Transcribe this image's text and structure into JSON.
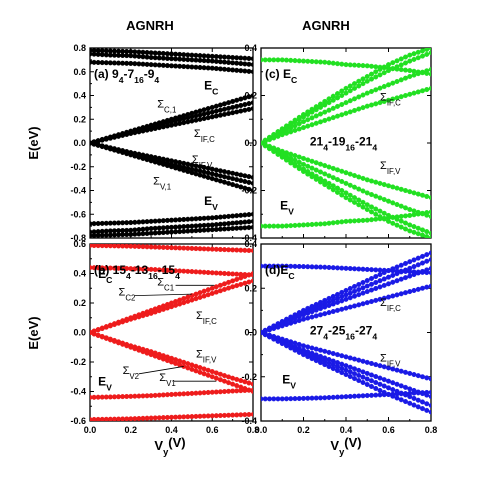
{
  "colors": {
    "panel_a": "#000000",
    "panel_b": "#ee1c1c",
    "panel_c": "#22e022",
    "panel_d": "#1a1ae6",
    "axis": "#000000"
  },
  "figure": {
    "column_headers": [
      "AGNRH",
      "AGNRH"
    ],
    "ylabel_main": "E(eV)",
    "ylabel_sub": "",
    "xlabel_main": "V",
    "xlabel_sub": "y",
    "xlabel_tail": "(V)"
  },
  "chart_data": [
    {
      "id": "a",
      "type": "line",
      "label": {
        "main": "(a) ",
        "parts": [
          [
            "9",
            "4"
          ],
          [
            "-7",
            "16"
          ],
          [
            "-9",
            "4"
          ]
        ]
      },
      "xlim": [
        0,
        0.8
      ],
      "ylim": [
        -0.8,
        0.8
      ],
      "x_ticks": [
        "",
        "",
        "",
        "",
        ""
      ],
      "y_ticks": [
        "-0.8",
        "-0.6",
        "-0.4",
        "-0.2",
        "0.0",
        "0.2",
        "0.4",
        "0.6",
        "0.8"
      ],
      "x": [
        0.0,
        0.1,
        0.2,
        0.3,
        0.4,
        0.5,
        0.6,
        0.7,
        0.8
      ],
      "series": [
        {
          "values": [
            0.78,
            0.775,
            0.77,
            0.76,
            0.75,
            0.74,
            0.73,
            0.72,
            0.71
          ]
        },
        {
          "values": [
            0.75,
            0.74,
            0.735,
            0.72,
            0.71,
            0.7,
            0.69,
            0.675,
            0.66
          ]
        },
        {
          "values": [
            0.68,
            0.675,
            0.67,
            0.66,
            0.65,
            0.64,
            0.63,
            0.615,
            0.6
          ]
        },
        {
          "values": [
            0.0,
            0.05,
            0.1,
            0.15,
            0.2,
            0.25,
            0.3,
            0.35,
            0.4
          ]
        },
        {
          "values": [
            0.0,
            0.045,
            0.09,
            0.135,
            0.18,
            0.22,
            0.26,
            0.3,
            0.34
          ]
        },
        {
          "values": [
            0.0,
            0.04,
            0.08,
            0.115,
            0.15,
            0.185,
            0.22,
            0.255,
            0.29
          ]
        },
        {
          "values": [
            0.0,
            -0.04,
            -0.08,
            -0.115,
            -0.15,
            -0.185,
            -0.22,
            -0.255,
            -0.29
          ]
        },
        {
          "values": [
            0.0,
            -0.045,
            -0.09,
            -0.135,
            -0.18,
            -0.22,
            -0.26,
            -0.3,
            -0.34
          ]
        },
        {
          "values": [
            0.0,
            -0.05,
            -0.1,
            -0.15,
            -0.2,
            -0.25,
            -0.3,
            -0.35,
            -0.4
          ]
        },
        {
          "values": [
            -0.68,
            -0.675,
            -0.67,
            -0.66,
            -0.65,
            -0.64,
            -0.63,
            -0.615,
            -0.6
          ]
        },
        {
          "values": [
            -0.75,
            -0.74,
            -0.735,
            -0.72,
            -0.71,
            -0.7,
            -0.69,
            -0.675,
            -0.66
          ]
        },
        {
          "values": [
            -0.78,
            -0.775,
            -0.77,
            -0.76,
            -0.75,
            -0.74,
            -0.73,
            -0.72,
            -0.71
          ]
        }
      ],
      "annotations": [
        {
          "main": "E",
          "sub": "C",
          "x": 0.56,
          "y": 0.45
        },
        {
          "main": "Σ",
          "sub": "C,1",
          "x": 0.33,
          "y": 0.3
        },
        {
          "main": "Σ",
          "sub": "IF,C",
          "x": 0.51,
          "y": 0.05
        },
        {
          "main": "Σ",
          "sub": "IF,V",
          "x": 0.5,
          "y": -0.17
        },
        {
          "main": "Σ",
          "sub": "V,1",
          "x": 0.31,
          "y": -0.35
        },
        {
          "main": "E",
          "sub": "V",
          "x": 0.56,
          "y": -0.52
        }
      ]
    },
    {
      "id": "c",
      "type": "line",
      "label": {
        "main": "(c) ",
        "parts": [
          [
            "E",
            "C"
          ]
        ]
      },
      "center_label": {
        "parts": [
          [
            "21",
            "4"
          ],
          [
            "-19",
            "16"
          ],
          [
            "-21",
            "4"
          ]
        ],
        "x": 0.23,
        "y": -0.01
      },
      "xlim": [
        0,
        0.8
      ],
      "ylim": [
        -0.4,
        0.4
      ],
      "x_ticks": [
        "",
        "",
        "",
        "",
        ""
      ],
      "y_ticks": [
        "-0.4",
        "-0.2",
        "0.0",
        "0.2",
        "0.4"
      ],
      "x": [
        0.0,
        0.1,
        0.2,
        0.3,
        0.4,
        0.5,
        0.6,
        0.7,
        0.8
      ],
      "series": [
        {
          "values": [
            0.35,
            0.35,
            0.345,
            0.34,
            0.33,
            0.325,
            0.315,
            0.305,
            0.29
          ]
        },
        {
          "values": [
            0.0,
            0.06,
            0.12,
            0.175,
            0.23,
            0.28,
            0.33,
            0.37,
            0.4
          ]
        },
        {
          "values": [
            0.0,
            0.055,
            0.11,
            0.16,
            0.21,
            0.26,
            0.305,
            0.345,
            0.38
          ]
        },
        {
          "values": [
            0.0,
            0.045,
            0.09,
            0.13,
            0.17,
            0.21,
            0.245,
            0.28,
            0.31
          ]
        },
        {
          "values": [
            0.0,
            0.035,
            0.065,
            0.095,
            0.125,
            0.155,
            0.18,
            0.205,
            0.23
          ]
        },
        {
          "values": [
            0.0,
            -0.035,
            -0.065,
            -0.095,
            -0.125,
            -0.155,
            -0.18,
            -0.205,
            -0.23
          ]
        },
        {
          "values": [
            0.0,
            -0.045,
            -0.09,
            -0.13,
            -0.17,
            -0.21,
            -0.245,
            -0.28,
            -0.31
          ]
        },
        {
          "values": [
            0.0,
            -0.055,
            -0.11,
            -0.16,
            -0.21,
            -0.26,
            -0.305,
            -0.345,
            -0.38
          ]
        },
        {
          "values": [
            0.0,
            -0.06,
            -0.12,
            -0.175,
            -0.23,
            -0.28,
            -0.33,
            -0.37,
            -0.4
          ]
        },
        {
          "values": [
            -0.35,
            -0.35,
            -0.345,
            -0.34,
            -0.33,
            -0.325,
            -0.315,
            -0.305,
            -0.29
          ]
        }
      ],
      "annotations": [
        {
          "main": "Σ",
          "sub": "IF,C",
          "x": 0.56,
          "y": 0.18
        },
        {
          "main": "Σ",
          "sub": "IF,V",
          "x": 0.56,
          "y": -0.11
        },
        {
          "main": "E",
          "sub": "V",
          "x": 0.09,
          "y": -0.28
        }
      ]
    },
    {
      "id": "b",
      "type": "line",
      "label": {
        "main": "(b) ",
        "parts": [
          [
            "15",
            "4"
          ],
          [
            "-13",
            "16"
          ],
          [
            "-15",
            "4"
          ]
        ]
      },
      "xlim": [
        0,
        0.8
      ],
      "ylim": [
        -0.6,
        0.6
      ],
      "x_ticks": [
        "0.0",
        "0.2",
        "0.4",
        "0.6",
        "0.8"
      ],
      "y_ticks": [
        "-0.6",
        "-0.4",
        "-0.2",
        "0.0",
        "0.2",
        "0.4",
        "0.6"
      ],
      "x": [
        0.0,
        0.1,
        0.2,
        0.3,
        0.4,
        0.5,
        0.6,
        0.7,
        0.8
      ],
      "series": [
        {
          "values": [
            0.59,
            0.588,
            0.585,
            0.58,
            0.575,
            0.57,
            0.565,
            0.56,
            0.555
          ]
        },
        {
          "values": [
            0.44,
            0.437,
            0.433,
            0.428,
            0.42,
            0.413,
            0.405,
            0.397,
            0.39
          ]
        },
        {
          "values": [
            0.0,
            0.05,
            0.1,
            0.15,
            0.2,
            0.25,
            0.3,
            0.35,
            0.4
          ]
        },
        {
          "values": [
            0.0,
            0.045,
            0.09,
            0.13,
            0.175,
            0.22,
            0.265,
            0.31,
            0.35
          ]
        },
        {
          "values": [
            0.0,
            -0.045,
            -0.09,
            -0.13,
            -0.175,
            -0.22,
            -0.265,
            -0.31,
            -0.35
          ]
        },
        {
          "values": [
            0.0,
            -0.05,
            -0.1,
            -0.15,
            -0.2,
            -0.25,
            -0.3,
            -0.35,
            -0.4
          ]
        },
        {
          "values": [
            -0.44,
            -0.437,
            -0.433,
            -0.428,
            -0.42,
            -0.413,
            -0.405,
            -0.397,
            -0.39
          ]
        },
        {
          "values": [
            -0.59,
            -0.588,
            -0.585,
            -0.58,
            -0.575,
            -0.57,
            -0.565,
            -0.56,
            -0.555
          ]
        }
      ],
      "annotations": [
        {
          "main": "E",
          "sub": "C",
          "x": 0.04,
          "y": 0.37
        },
        {
          "main": "Σ",
          "sub": "C2",
          "x": 0.14,
          "y": 0.25
        },
        {
          "main": "Σ",
          "sub": "C1",
          "x": 0.33,
          "y": 0.32
        },
        {
          "main": "Σ",
          "sub": "IF,C",
          "x": 0.52,
          "y": 0.09
        },
        {
          "main": "Σ",
          "sub": "IF,V",
          "x": 0.52,
          "y": -0.17
        },
        {
          "main": "Σ",
          "sub": "V2",
          "x": 0.16,
          "y": -0.28
        },
        {
          "main": "Σ",
          "sub": "V1",
          "x": 0.34,
          "y": -0.33
        },
        {
          "main": "E",
          "sub": "V",
          "x": 0.04,
          "y": -0.36
        }
      ],
      "leaders": [
        {
          "x1": 0.22,
          "y1": 0.25,
          "x2": 0.5,
          "y2": 0.26
        },
        {
          "x1": 0.42,
          "y1": 0.32,
          "x2": 0.61,
          "y2": 0.32
        },
        {
          "x1": 0.24,
          "y1": -0.28,
          "x2": 0.46,
          "y2": -0.23
        },
        {
          "x1": 0.41,
          "y1": -0.33,
          "x2": 0.62,
          "y2": -0.33
        }
      ]
    },
    {
      "id": "d",
      "type": "line",
      "label": {
        "main": "(d)",
        "parts": [
          [
            "E",
            "C"
          ]
        ]
      },
      "center_label": {
        "parts": [
          [
            "27",
            "4"
          ],
          [
            "-25",
            "16"
          ],
          [
            "-27",
            "4"
          ]
        ],
        "x": 0.23,
        "y": -0.01
      },
      "xlim": [
        0,
        0.8
      ],
      "ylim": [
        -0.4,
        0.4
      ],
      "x_ticks": [
        "0.0",
        "0.2",
        "0.4",
        "0.6",
        "0.8"
      ],
      "y_ticks": [
        "-0.4",
        "-0.2",
        "0.0",
        "0.2",
        "0.4"
      ],
      "x": [
        0.0,
        0.1,
        0.2,
        0.3,
        0.4,
        0.5,
        0.6,
        0.7,
        0.8
      ],
      "series": [
        {
          "values": [
            0.3,
            0.3,
            0.298,
            0.295,
            0.29,
            0.285,
            0.28,
            0.275,
            0.27
          ]
        },
        {
          "values": [
            0.0,
            0.05,
            0.1,
            0.145,
            0.19,
            0.235,
            0.28,
            0.32,
            0.36
          ]
        },
        {
          "values": [
            0.0,
            0.045,
            0.09,
            0.13,
            0.17,
            0.21,
            0.25,
            0.29,
            0.33
          ]
        },
        {
          "values": [
            0.0,
            0.04,
            0.08,
            0.115,
            0.15,
            0.185,
            0.22,
            0.255,
            0.29
          ]
        },
        {
          "values": [
            0.0,
            0.03,
            0.06,
            0.085,
            0.11,
            0.135,
            0.16,
            0.185,
            0.21
          ]
        },
        {
          "values": [
            0.0,
            -0.03,
            -0.06,
            -0.085,
            -0.11,
            -0.135,
            -0.16,
            -0.185,
            -0.21
          ]
        },
        {
          "values": [
            0.0,
            -0.04,
            -0.08,
            -0.115,
            -0.15,
            -0.185,
            -0.22,
            -0.255,
            -0.29
          ]
        },
        {
          "values": [
            0.0,
            -0.045,
            -0.09,
            -0.13,
            -0.17,
            -0.21,
            -0.25,
            -0.29,
            -0.33
          ]
        },
        {
          "values": [
            0.0,
            -0.05,
            -0.1,
            -0.145,
            -0.19,
            -0.235,
            -0.28,
            -0.32,
            -0.36
          ]
        },
        {
          "values": [
            -0.3,
            -0.3,
            -0.298,
            -0.295,
            -0.29,
            -0.285,
            -0.28,
            -0.275,
            -0.27
          ]
        }
      ],
      "annotations": [
        {
          "main": "Σ",
          "sub": "IF,C",
          "x": 0.56,
          "y": 0.12
        },
        {
          "main": "Σ",
          "sub": "IF,V",
          "x": 0.56,
          "y": -0.13
        },
        {
          "main": "E",
          "sub": "V",
          "x": 0.1,
          "y": -0.23
        }
      ]
    }
  ]
}
